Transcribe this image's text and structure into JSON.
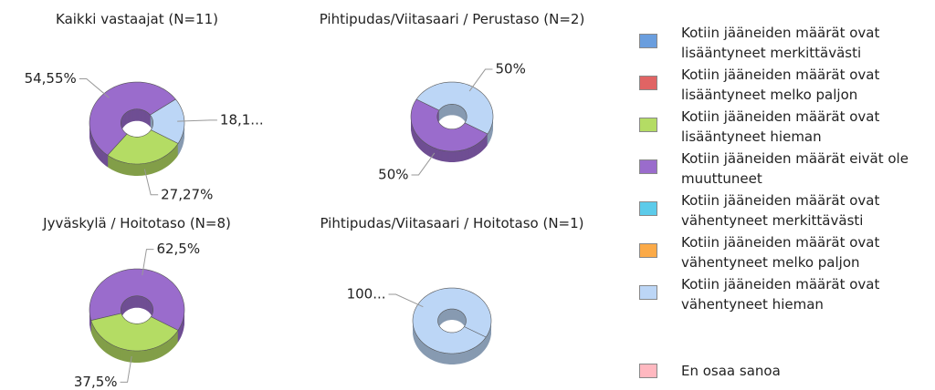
{
  "chart_data": {
    "type": "donut",
    "categories": [
      "Kotiin jääneiden määrät ovat lisääntyneet merkittävästi",
      "Kotiin jääneiden määrät ovat lisääntyneet melko paljon",
      "Kotiin jääneiden määrät ovat lisääntyneet hieman",
      "Kotiin jääneiden määrät eivät ole muuttuneet",
      "Kotiin jääneiden määrät ovat vähentyneet merkittävästi",
      "Kotiin jääneiden määrät ovat vähentyneet melko paljon",
      "Kotiin jääneiden määrät ovat vähentyneet hieman",
      "En osaa sanoa"
    ],
    "colors": [
      "#6a9ede",
      "#e06464",
      "#b4dc64",
      "#9a6ccc",
      "#5ccbea",
      "#fbaa48",
      "#bcd6f6",
      "#ffb8c0"
    ],
    "charts": [
      {
        "title": "Kaikki vastaajat (N=11)",
        "values": [
          0,
          0,
          27.27,
          54.55,
          0,
          0,
          18.18,
          0
        ],
        "value_labels": [
          null,
          null,
          "27,27%",
          "54,55%",
          null,
          null,
          "18,1...",
          null
        ]
      },
      {
        "title": "Pihtipudas/Viitasaari / Perustaso (N=2)",
        "values": [
          0,
          0,
          0,
          50,
          0,
          0,
          50,
          0
        ],
        "value_labels": [
          null,
          null,
          null,
          "50%",
          null,
          null,
          "50%",
          null
        ]
      },
      {
        "title": "Jyväskylä / Hoitotaso (N=8)",
        "values": [
          0,
          0,
          37.5,
          62.5,
          0,
          0,
          0,
          0
        ],
        "value_labels": [
          null,
          null,
          "37,5%",
          "62,5%",
          null,
          null,
          null,
          null
        ]
      },
      {
        "title": "Pihtipudas/Viitasaari / Hoitotaso (N=1)",
        "values": [
          0,
          0,
          0,
          0,
          0,
          0,
          100,
          0
        ],
        "value_labels": [
          null,
          null,
          null,
          null,
          null,
          null,
          "100...",
          null
        ]
      }
    ]
  }
}
